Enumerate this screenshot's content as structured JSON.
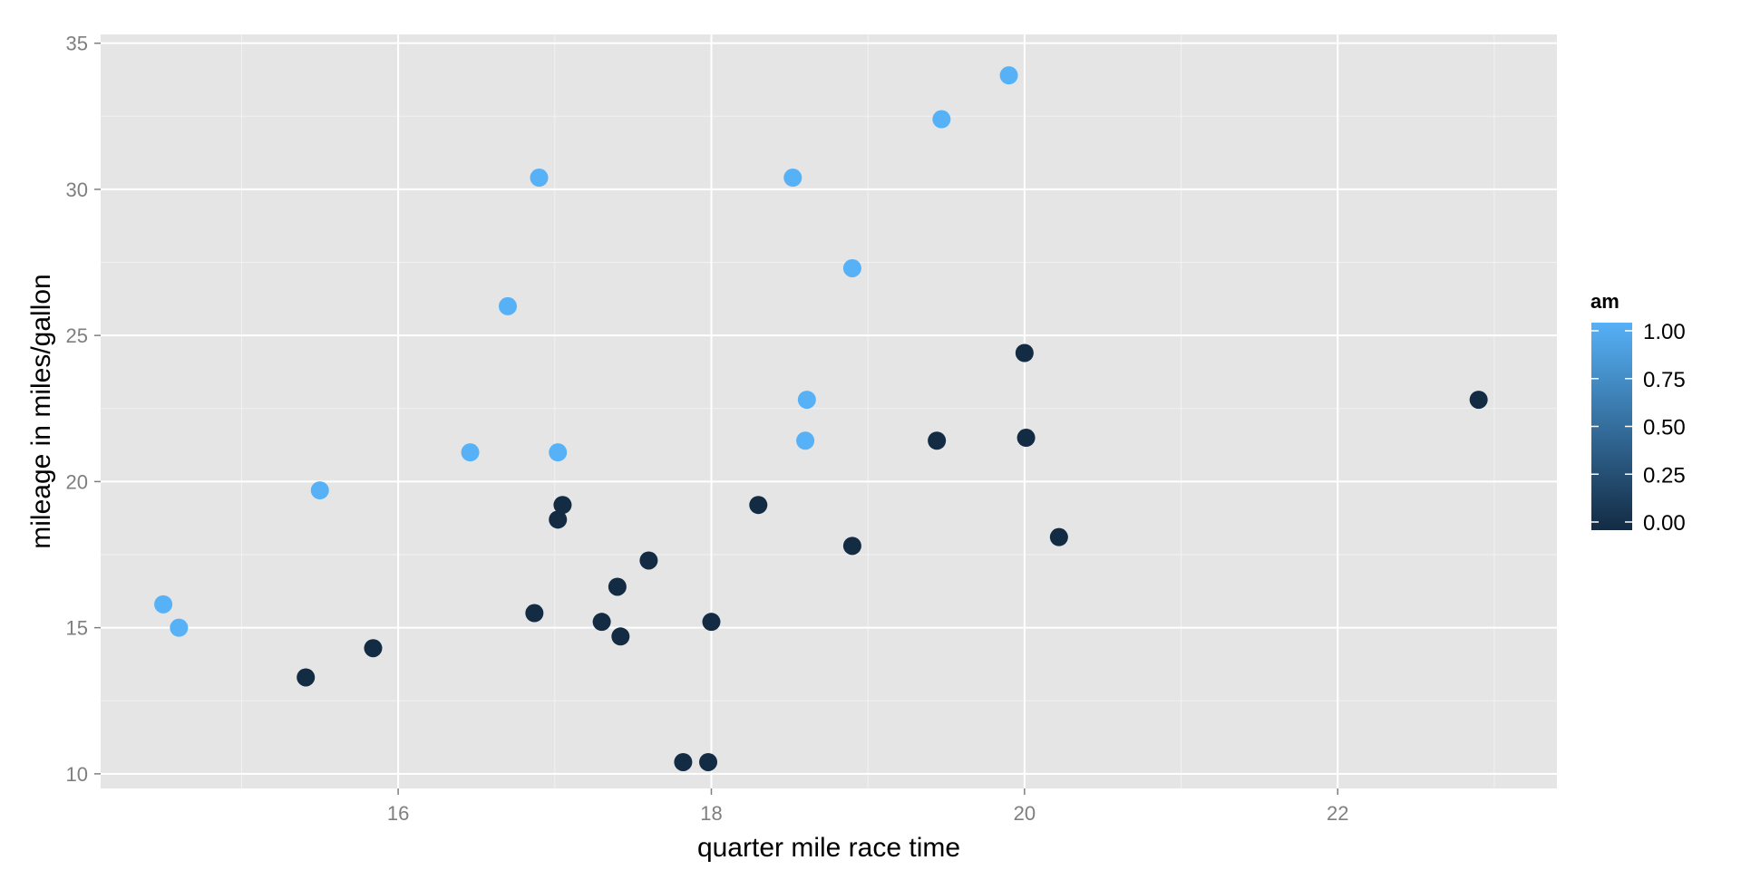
{
  "chart_data": {
    "type": "scatter",
    "title": "",
    "xlabel": "quarter mile race time",
    "ylabel": "mileage in miles/gallon",
    "xlim": [
      14.1,
      23.4
    ],
    "ylim": [
      9.5,
      35.3
    ],
    "x_ticks": [
      16,
      18,
      20,
      22
    ],
    "x_tick_labels": [
      "16",
      "18",
      "20",
      "22"
    ],
    "y_ticks": [
      10,
      15,
      20,
      25,
      30,
      35
    ],
    "y_tick_labels": [
      "10",
      "15",
      "20",
      "25",
      "30",
      "35"
    ],
    "grid": true,
    "color_scale": {
      "variable": "am",
      "low_color": "#132B43",
      "high_color": "#56B1F7",
      "range": [
        0,
        1
      ],
      "breaks": [
        1.0,
        0.75,
        0.5,
        0.25,
        0.0
      ],
      "break_labels": [
        "1.00",
        "0.75",
        "0.50",
        "0.25",
        "0.00"
      ]
    },
    "legend_title": "am",
    "legend_position": "right",
    "points": [
      {
        "x": 16.46,
        "y": 21.0,
        "am": 1
      },
      {
        "x": 17.02,
        "y": 21.0,
        "am": 1
      },
      {
        "x": 18.61,
        "y": 22.8,
        "am": 1
      },
      {
        "x": 19.44,
        "y": 21.4,
        "am": 0
      },
      {
        "x": 17.02,
        "y": 18.7,
        "am": 0
      },
      {
        "x": 20.22,
        "y": 18.1,
        "am": 0
      },
      {
        "x": 15.84,
        "y": 14.3,
        "am": 0
      },
      {
        "x": 20.0,
        "y": 24.4,
        "am": 0
      },
      {
        "x": 22.9,
        "y": 22.8,
        "am": 0
      },
      {
        "x": 18.3,
        "y": 19.2,
        "am": 0
      },
      {
        "x": 18.9,
        "y": 17.8,
        "am": 0
      },
      {
        "x": 17.4,
        "y": 16.4,
        "am": 0
      },
      {
        "x": 17.6,
        "y": 17.3,
        "am": 0
      },
      {
        "x": 18.0,
        "y": 15.2,
        "am": 0
      },
      {
        "x": 17.98,
        "y": 10.4,
        "am": 0
      },
      {
        "x": 17.82,
        "y": 10.4,
        "am": 0
      },
      {
        "x": 17.42,
        "y": 14.7,
        "am": 0
      },
      {
        "x": 19.47,
        "y": 32.4,
        "am": 1
      },
      {
        "x": 18.52,
        "y": 30.4,
        "am": 1
      },
      {
        "x": 19.9,
        "y": 33.9,
        "am": 1
      },
      {
        "x": 20.01,
        "y": 21.5,
        "am": 0
      },
      {
        "x": 16.87,
        "y": 15.5,
        "am": 0
      },
      {
        "x": 17.3,
        "y": 15.2,
        "am": 0
      },
      {
        "x": 15.41,
        "y": 13.3,
        "am": 0
      },
      {
        "x": 17.05,
        "y": 19.2,
        "am": 0
      },
      {
        "x": 18.9,
        "y": 27.3,
        "am": 1
      },
      {
        "x": 16.7,
        "y": 26.0,
        "am": 1
      },
      {
        "x": 16.9,
        "y": 30.4,
        "am": 1
      },
      {
        "x": 14.5,
        "y": 15.8,
        "am": 1
      },
      {
        "x": 15.5,
        "y": 19.7,
        "am": 1
      },
      {
        "x": 14.6,
        "y": 15.0,
        "am": 1
      },
      {
        "x": 18.6,
        "y": 21.4,
        "am": 1
      }
    ]
  }
}
